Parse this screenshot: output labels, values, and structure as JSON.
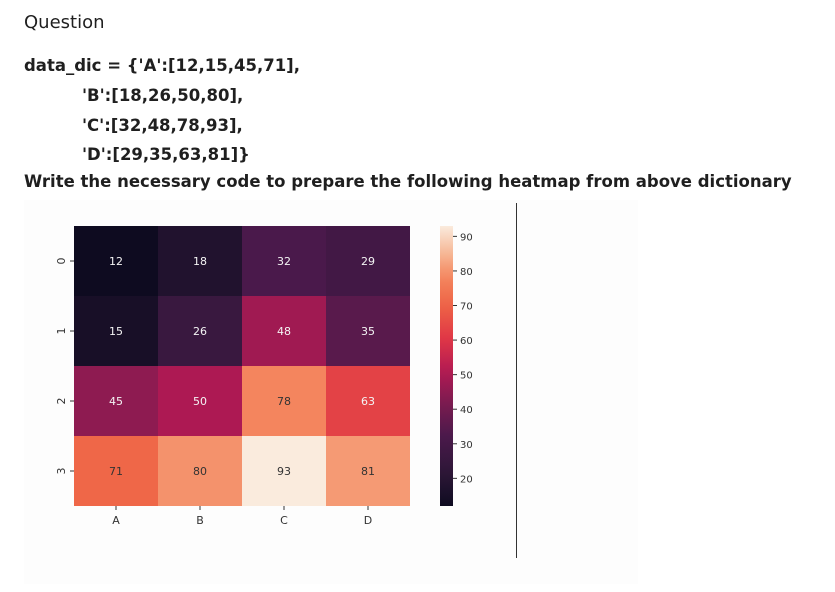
{
  "question": {
    "title": "Question",
    "code_lines": [
      "data_dic = {'A':[12,15,45,71],",
      "'B':[18,26,50,80],",
      "'C':[32,48,78,93],",
      "'D':[29,35,63,81]}"
    ],
    "prompt": "Write the necessary code to prepare the following heatmap from above dictionary"
  },
  "chart_data": {
    "type": "heatmap",
    "columns": [
      "A",
      "B",
      "C",
      "D"
    ],
    "rows": [
      "0",
      "1",
      "2",
      "3"
    ],
    "values": [
      [
        12,
        18,
        32,
        29
      ],
      [
        15,
        26,
        48,
        35
      ],
      [
        45,
        50,
        78,
        63
      ],
      [
        71,
        80,
        93,
        81
      ]
    ],
    "colormap": "rocket",
    "vmin": 12,
    "vmax": 93,
    "colorbar_ticks": [
      20,
      30,
      40,
      50,
      60,
      70,
      80,
      90
    ],
    "annotations": true
  }
}
